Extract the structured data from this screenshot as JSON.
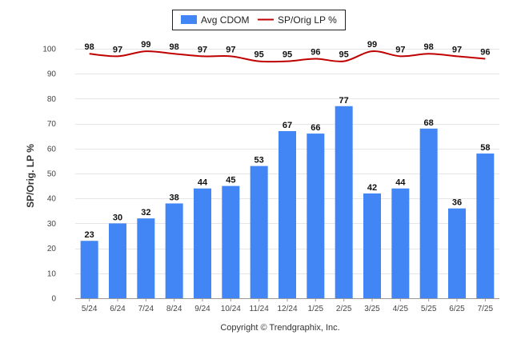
{
  "chart_data": {
    "type": "bar",
    "categories": [
      "5/24",
      "6/24",
      "7/24",
      "8/24",
      "9/24",
      "10/24",
      "11/24",
      "12/24",
      "1/25",
      "2/25",
      "3/25",
      "4/25",
      "5/25",
      "6/25",
      "7/25"
    ],
    "series": [
      {
        "name": "Avg CDOM",
        "type": "bar",
        "values": [
          23,
          30,
          32,
          38,
          44,
          45,
          53,
          67,
          66,
          77,
          42,
          44,
          68,
          36,
          58
        ],
        "color": "#4285f4"
      },
      {
        "name": "SP/Orig LP %",
        "type": "line",
        "values": [
          98,
          97,
          99,
          98,
          97,
          97,
          95,
          95,
          96,
          95,
          99,
          97,
          98,
          97,
          96
        ],
        "color": "#c00000"
      }
    ],
    "ylabel": "SP/Orig. LP %",
    "xlabel": "",
    "ylim": [
      0,
      100
    ],
    "yticks": [
      "0",
      "10",
      "20",
      "30",
      "40",
      "50",
      "60",
      "70",
      "80",
      "90",
      "100"
    ],
    "grid": true,
    "legend": "top-center"
  },
  "copyright": "Copyright © Trendgraphix, Inc."
}
